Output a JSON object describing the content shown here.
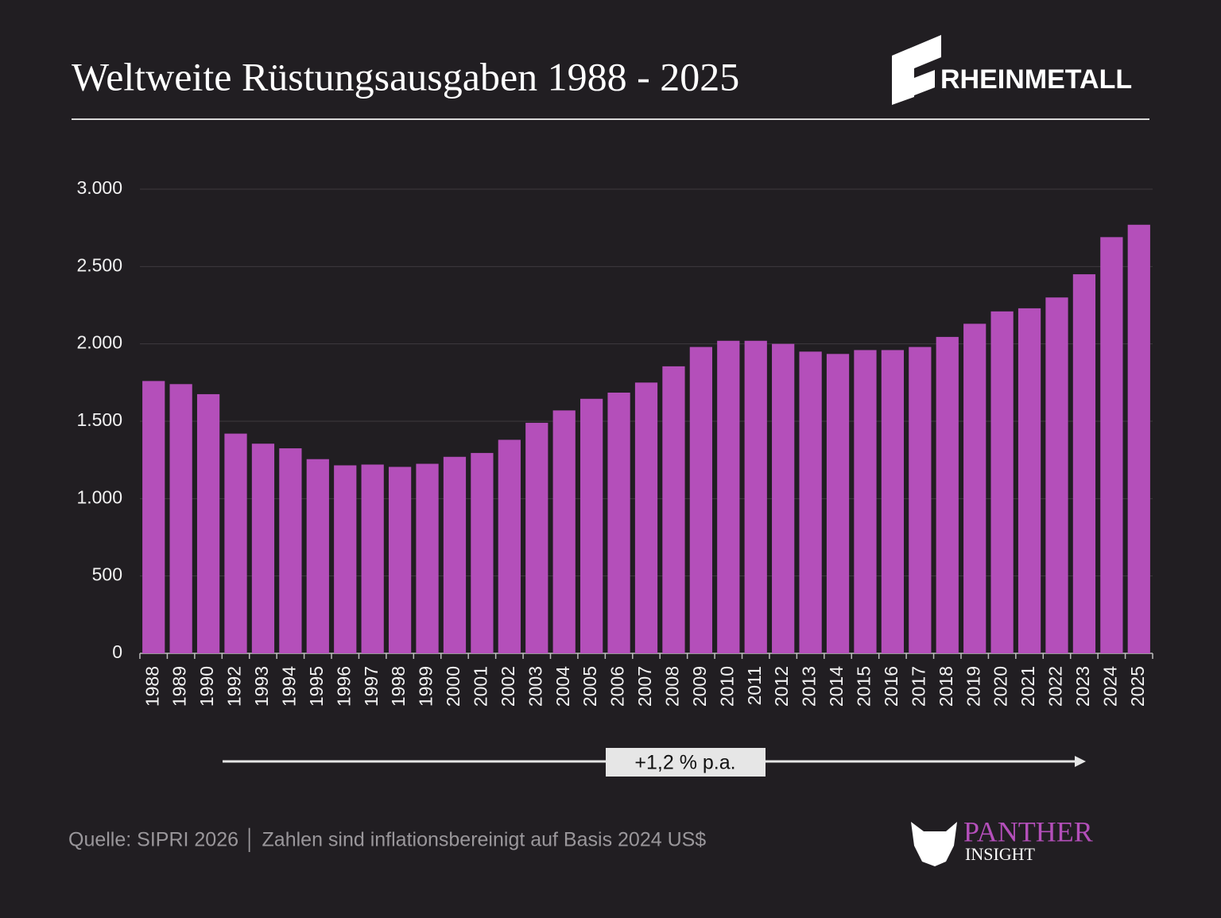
{
  "chart_data": {
    "type": "bar",
    "title": "Weltweite Rüstungsausgaben 1988 - 2025",
    "brand": "RHEINMETALL",
    "annotation": "+1,2 % p.a.",
    "source": "Quelle: SIPRI 2026 │ Zahlen sind inflationsbereinigt auf Basis 2024 US$",
    "footer_logo": {
      "name": "PANTHER",
      "subtitle": "INSIGHT"
    },
    "categories": [
      "1988",
      "1989",
      "1990",
      "1992",
      "1993",
      "1994",
      "1995",
      "1996",
      "1997",
      "1998",
      "1999",
      "2000",
      "2001",
      "2002",
      "2003",
      "2004",
      "2005",
      "2006",
      "2007",
      "2008",
      "2009",
      "2010",
      "2011",
      "2012",
      "2013",
      "2014",
      "2015",
      "2016",
      "2017",
      "2018",
      "2019",
      "2020",
      "2021",
      "2022",
      "2023",
      "2024",
      "2025"
    ],
    "values": [
      1760,
      1740,
      1675,
      1420,
      1355,
      1325,
      1255,
      1215,
      1220,
      1205,
      1225,
      1270,
      1295,
      1380,
      1490,
      1570,
      1645,
      1685,
      1750,
      1855,
      1980,
      2020,
      2020,
      2000,
      1950,
      1935,
      1960,
      1960,
      1980,
      2045,
      2130,
      2210,
      2230,
      2300,
      2450,
      2690,
      2770
    ],
    "color": "#b44fba",
    "ylim": [
      0,
      3000
    ],
    "yticks": [
      0,
      500,
      {
        "value": 1000,
        "label": "1.000"
      },
      {
        "value": 1500,
        "label": "1.500"
      },
      {
        "value": 2000,
        "label": "2.000"
      },
      {
        "value": 2500,
        "label": "2.500"
      },
      {
        "value": 3000,
        "label": "3.000"
      }
    ],
    "grid": true
  }
}
